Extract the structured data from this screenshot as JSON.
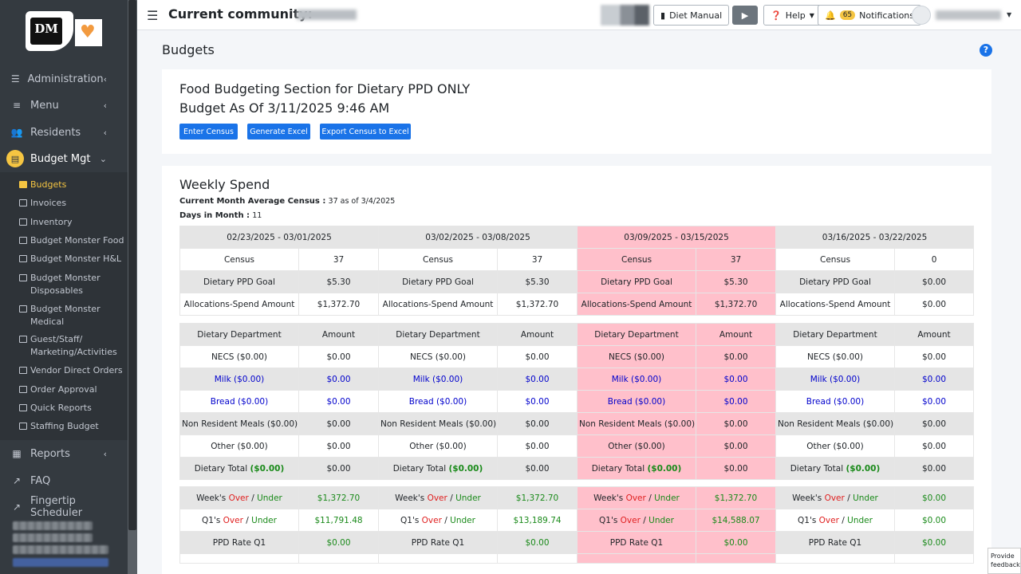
{
  "sidebar": {
    "logo_text": "DM",
    "main_top": [
      {
        "label": "Administration",
        "icon": "sliders-icon"
      },
      {
        "label": "Menu",
        "icon": "bars-icon"
      },
      {
        "label": "Residents",
        "icon": "users-icon"
      }
    ],
    "active_main": {
      "label": "Budget Mgt",
      "icon": "list-icon"
    },
    "sub_items": [
      "Budgets",
      "Invoices",
      "Inventory",
      "Budget Monster Food",
      "Budget Monster H&L",
      "Budget Monster Disposables",
      "Budget Monster Medical",
      "Guest/Staff/ Marketing/Activities",
      "Vendor Direct Orders",
      "Order Approval",
      "Quick Reports",
      "Staffing Budget"
    ],
    "active_sub": "Budgets",
    "main_bottom": [
      {
        "label": "Reports",
        "icon": "report-icon"
      },
      {
        "label": "FAQ",
        "icon": "external-link-icon"
      },
      {
        "label": "Fingertip Scheduler",
        "icon": "external-link-icon"
      }
    ]
  },
  "topbar": {
    "community_label": "Current community:",
    "diet_manual": "Diet Manual",
    "help": "Help",
    "notif_count": "65",
    "notifications": "Notifications"
  },
  "page": {
    "title": "Budgets",
    "help_icon": "?"
  },
  "budget_card": {
    "line1": "Food Budgeting Section for Dietary PPD ONLY",
    "line2": "Budget As Of 3/11/2025 9:46 AM",
    "buttons": [
      "Enter Census",
      "Generate Excel",
      "Export Census to Excel"
    ]
  },
  "weekly": {
    "title": "Weekly Spend",
    "census_label": "Current Month Average Census :",
    "census_value": "37 as of 3/4/2025",
    "days_label": "Days in Month :",
    "days_value": "11",
    "weeks": [
      {
        "range": "02/23/2025 - 03/01/2025",
        "census": "37",
        "goal": "$5.30",
        "alloc": "$1,372.70",
        "dept": [
          "$0.00",
          "$0.00",
          "$0.00",
          "$0.00",
          "$0.00",
          "$0.00"
        ],
        "over": "$1,372.70",
        "q1": "$11,791.48",
        "ppd": "$0.00",
        "highlight": false
      },
      {
        "range": "03/02/2025 - 03/08/2025",
        "census": "37",
        "goal": "$5.30",
        "alloc": "$1,372.70",
        "dept": [
          "$0.00",
          "$0.00",
          "$0.00",
          "$0.00",
          "$0.00",
          "$0.00"
        ],
        "over": "$1,372.70",
        "q1": "$13,189.74",
        "ppd": "$0.00",
        "highlight": false
      },
      {
        "range": "03/09/2025 - 03/15/2025",
        "census": "37",
        "goal": "$5.30",
        "alloc": "$1,372.70",
        "dept": [
          "$0.00",
          "$0.00",
          "$0.00",
          "$0.00",
          "$0.00",
          "$0.00"
        ],
        "over": "$1,372.70",
        "q1": "$14,588.07",
        "ppd": "$0.00",
        "highlight": true
      },
      {
        "range": "03/16/2025 - 03/22/2025",
        "census": "0",
        "goal": "$0.00",
        "alloc": "$0.00",
        "dept": [
          "$0.00",
          "$0.00",
          "$0.00",
          "$0.00",
          "$0.00",
          "$0.00"
        ],
        "over": "$0.00",
        "q1": "$0.00",
        "ppd": "$0.00",
        "highlight": false
      }
    ],
    "labels": {
      "census": "Census",
      "goal": "Dietary PPD Goal",
      "alloc": "Allocations-Spend Amount",
      "dept_header": "Dietary Department",
      "amount_header": "Amount",
      "dept_rows": [
        "NECS ($0.00)",
        "Milk ($0.00)",
        "Bread ($0.00)",
        "Non Resident Meals ($0.00)",
        "Other ($0.00)",
        "Dietary Total"
      ],
      "dietary_total_value": "($0.00)",
      "week_prefix": "Week's",
      "q1_prefix": "Q1's",
      "over": "Over",
      "slash": "/",
      "under": "Under",
      "ppd_rate": "PPD Rate Q1"
    }
  },
  "feedback": "Provide feedback",
  "colors": {
    "highlight": "#ffc0cb",
    "primary": "#1a73e8",
    "sidebar": "#343a40",
    "accent": "#f5c542"
  }
}
